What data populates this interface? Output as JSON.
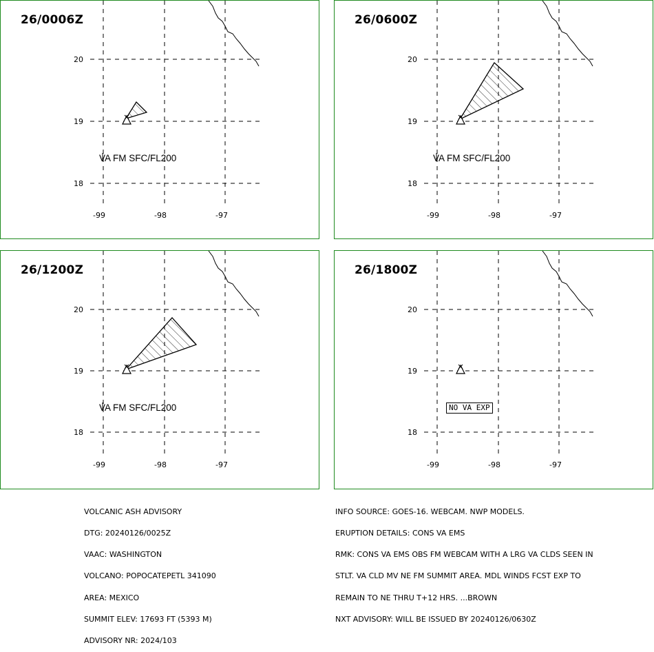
{
  "panels": [
    {
      "time": "26/0006Z",
      "lat_ticks": [
        "20",
        "19",
        "18"
      ],
      "lon_ticks": [
        "-99",
        "-98",
        "-97"
      ],
      "layer": "VA FM SFC/FL200",
      "status": ""
    },
    {
      "time": "26/0600Z",
      "lat_ticks": [
        "20",
        "19",
        "18"
      ],
      "lon_ticks": [
        "-99",
        "-98",
        "-97"
      ],
      "layer": "VA FM SFC/FL200",
      "status": ""
    },
    {
      "time": "26/1200Z",
      "lat_ticks": [
        "20",
        "19",
        "18"
      ],
      "lon_ticks": [
        "-99",
        "-98",
        "-97"
      ],
      "layer": "VA FM SFC/FL200",
      "status": ""
    },
    {
      "time": "26/1800Z",
      "lat_ticks": [
        "20",
        "19",
        "18"
      ],
      "lon_ticks": [
        "-99",
        "-98",
        "-97"
      ],
      "layer": "",
      "status": "NO VA EXP"
    }
  ],
  "advisory_left": {
    "l1": "VOLCANIC ASH ADVISORY",
    "l2": "DTG: 20240126/0025Z",
    "l3": "VAAC: WASHINGTON",
    "l4": "VOLCANO: POPOCATEPETL 341090",
    "l5": "AREA: MEXICO",
    "l6": "SUMMIT ELEV: 17693 FT (5393 M)",
    "l7": "ADVISORY NR: 2024/103"
  },
  "advisory_right": {
    "l1": "INFO SOURCE: GOES-16. WEBCAM. NWP MODELS.",
    "l2": "ERUPTION DETAILS: CONS VA EMS",
    "l3": "RMK: CONS VA EMS OBS FM WEBCAM WITH A LRG VA CLDS SEEN IN",
    "l4": "STLT. VA CLD MV NE FM SUMMIT AREA. MDL WINDS FCST EXP TO",
    "l5": "REMAIN TO NE THRU T+12 HRS. ...BROWN",
    "l6": "NXT ADVISORY: WILL BE ISSUED BY 20240126/0630Z"
  },
  "colors": {
    "panel_border": "#1e8a1e",
    "ink": "#000000"
  }
}
